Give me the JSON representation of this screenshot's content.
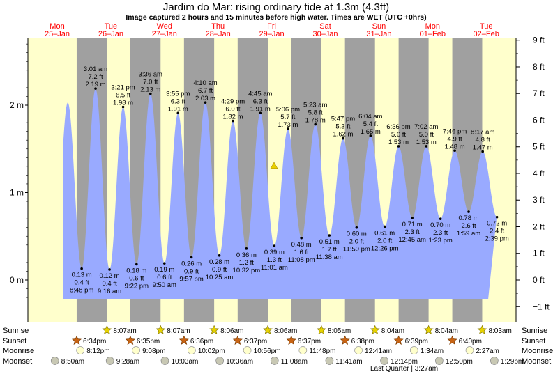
{
  "title": "Jardim do Mar: rising  ordinary tide at 1.3m (4.3ft)",
  "subtitle": "Image captured 2 hours and 15 minutes before high water. Times are WET (UTC +0hrs)",
  "colors": {
    "day_bg": "#ffffcc",
    "night_bg": "#a0a0a0",
    "water": "#99aaff",
    "day_text": "#ff0000",
    "marker": "#e8d000"
  },
  "chart_data": {
    "type": "area",
    "left_axis": {
      "unit": "m",
      "ticks": [
        "0 m",
        "1 m",
        "2 m"
      ]
    },
    "right_axis": {
      "unit": "ft",
      "ticks": [
        "−1 ft",
        "0 ft",
        "1 ft",
        "2 ft",
        "3 ft",
        "4 ft",
        "5 ft",
        "6 ft",
        "7 ft",
        "8 ft",
        "9 ft"
      ]
    },
    "current_level_m": 1.3,
    "days": [
      {
        "dow": "Mon",
        "date": "25–Jan"
      },
      {
        "dow": "Tue",
        "date": "26–Jan"
      },
      {
        "dow": "Wed",
        "date": "27–Jan"
      },
      {
        "dow": "Thu",
        "date": "28–Jan"
      },
      {
        "dow": "Fri",
        "date": "29–Jan"
      },
      {
        "dow": "Sat",
        "date": "30–Jan"
      },
      {
        "dow": "Sun",
        "date": "31–Jan"
      },
      {
        "dow": "Mon",
        "date": "01–Feb"
      },
      {
        "dow": "Tue",
        "date": "02–Feb"
      }
    ],
    "tides": [
      {
        "type": "low",
        "day": 0,
        "time": "8:48 pm",
        "m": "0.13 m",
        "ft": "0.4 ft",
        "v": 0.13
      },
      {
        "type": "high",
        "day": 1,
        "time": "3:01 am",
        "m": "2.19 m",
        "ft": "7.2 ft",
        "v": 2.19
      },
      {
        "type": "low",
        "day": 1,
        "time": "9:16 am",
        "m": "0.12 m",
        "ft": "0.4 ft",
        "v": 0.12
      },
      {
        "type": "high",
        "day": 1,
        "time": "3:21 pm",
        "m": "1.98 m",
        "ft": "6.5 ft",
        "v": 1.98
      },
      {
        "type": "low",
        "day": 1,
        "time": "9:22 pm",
        "m": "0.18 m",
        "ft": "0.6 ft",
        "v": 0.18
      },
      {
        "type": "high",
        "day": 2,
        "time": "3:36 am",
        "m": "2.13 m",
        "ft": "7.0 ft",
        "v": 2.13
      },
      {
        "type": "low",
        "day": 2,
        "time": "9:50 am",
        "m": "0.19 m",
        "ft": "0.6 ft",
        "v": 0.19
      },
      {
        "type": "high",
        "day": 2,
        "time": "3:55 pm",
        "m": "1.91 m",
        "ft": "6.3 ft",
        "v": 1.91
      },
      {
        "type": "low",
        "day": 2,
        "time": "9:57 pm",
        "m": "0.26 m",
        "ft": "0.9 ft",
        "v": 0.26
      },
      {
        "type": "high",
        "day": 3,
        "time": "4:10 am",
        "m": "2.03 m",
        "ft": "6.7 ft",
        "v": 2.03
      },
      {
        "type": "low",
        "day": 3,
        "time": "10:25 am",
        "m": "0.28 m",
        "ft": "0.9 ft",
        "v": 0.28
      },
      {
        "type": "high",
        "day": 3,
        "time": "4:29 pm",
        "m": "1.82 m",
        "ft": "6.0 ft",
        "v": 1.82
      },
      {
        "type": "low",
        "day": 3,
        "time": "10:32 pm",
        "m": "0.36 m",
        "ft": "1.2 ft",
        "v": 0.36
      },
      {
        "type": "high",
        "day": 4,
        "time": "4:45 am",
        "m": "1.91 m",
        "ft": "6.3 ft",
        "v": 1.91
      },
      {
        "type": "low",
        "day": 4,
        "time": "11:01 am",
        "m": "0.39 m",
        "ft": "1.3 ft",
        "v": 0.39
      },
      {
        "type": "high",
        "day": 4,
        "time": "5:06 pm",
        "m": "1.73 m",
        "ft": "5.7 ft",
        "v": 1.73
      },
      {
        "type": "low",
        "day": 4,
        "time": "11:08 pm",
        "m": "0.48 m",
        "ft": "1.6 ft",
        "v": 0.48
      },
      {
        "type": "high",
        "day": 5,
        "time": "5:23 am",
        "m": "1.78 m",
        "ft": "5.8 ft",
        "v": 1.78
      },
      {
        "type": "low",
        "day": 5,
        "time": "11:38 am",
        "m": "0.51 m",
        "ft": "1.7 ft",
        "v": 0.51
      },
      {
        "type": "high",
        "day": 5,
        "time": "5:47 pm",
        "m": "1.62 m",
        "ft": "5.3 ft",
        "v": 1.62
      },
      {
        "type": "low",
        "day": 5,
        "time": "11:50 pm",
        "m": "0.60 m",
        "ft": "2.0 ft",
        "v": 0.6
      },
      {
        "type": "high",
        "day": 6,
        "time": "6:04 am",
        "m": "1.65 m",
        "ft": "5.4 ft",
        "v": 1.65
      },
      {
        "type": "low",
        "day": 6,
        "time": "12:26 pm",
        "m": "0.61 m",
        "ft": "2.0 ft",
        "v": 0.61
      },
      {
        "type": "high",
        "day": 6,
        "time": "6:36 pm",
        "m": "1.53 m",
        "ft": "5.0 ft",
        "v": 1.53
      },
      {
        "type": "low",
        "day": 7,
        "time": "12:45 am",
        "m": "0.71 m",
        "ft": "2.3 ft",
        "v": 0.71
      },
      {
        "type": "high",
        "day": 7,
        "time": "7:02 am",
        "m": "1.53 m",
        "ft": "5.0 ft",
        "v": 1.53
      },
      {
        "type": "low",
        "day": 7,
        "time": "1:23 pm",
        "m": "0.70 m",
        "ft": "2.3 ft",
        "v": 0.7
      },
      {
        "type": "high",
        "day": 7,
        "time": "7:46 pm",
        "m": "1.48 m",
        "ft": "4.9 ft",
        "v": 1.48
      },
      {
        "type": "low",
        "day": 8,
        "time": "1:59 am",
        "m": "0.78 m",
        "ft": "2.6 ft",
        "v": 0.78
      },
      {
        "type": "high",
        "day": 8,
        "time": "8:17 am",
        "m": "1.47 m",
        "ft": "4.8 ft",
        "v": 1.47
      },
      {
        "type": "low",
        "day": 8,
        "time": "2:39 pm",
        "m": "0.72 m",
        "ft": "2.4 ft",
        "v": 0.72
      }
    ],
    "night_periods": [
      {
        "start_day": 0,
        "start": "6:34 pm",
        "end_day": 1,
        "end": "8:07 am"
      },
      {
        "start_day": 1,
        "start": "6:35 pm",
        "end_day": 2,
        "end": "8:07 am"
      },
      {
        "start_day": 2,
        "start": "6:36 pm",
        "end_day": 3,
        "end": "8:06 am"
      },
      {
        "start_day": 3,
        "start": "6:37 pm",
        "end_day": 4,
        "end": "8:06 am"
      },
      {
        "start_day": 4,
        "start": "6:37 pm",
        "end_day": 5,
        "end": "8:05 am"
      },
      {
        "start_day": 5,
        "start": "6:38 pm",
        "end_day": 6,
        "end": "8:04 am"
      },
      {
        "start_day": 6,
        "start": "6:39 pm",
        "end_day": 7,
        "end": "8:04 am"
      },
      {
        "start_day": 7,
        "start": "6:40 pm",
        "end_day": 8,
        "end": "8:03 am"
      }
    ]
  },
  "events": {
    "row_labels": [
      "Sunrise",
      "Sunset",
      "Moonrise",
      "Moonset"
    ],
    "sunrise": [
      {
        "day": 1,
        "time": "8:07am"
      },
      {
        "day": 2,
        "time": "8:07am"
      },
      {
        "day": 3,
        "time": "8:06am"
      },
      {
        "day": 4,
        "time": "8:06am"
      },
      {
        "day": 5,
        "time": "8:05am"
      },
      {
        "day": 6,
        "time": "8:04am"
      },
      {
        "day": 7,
        "time": "8:04am"
      },
      {
        "day": 8,
        "time": "8:03am"
      }
    ],
    "sunset": [
      {
        "day": 0,
        "time": "6:34pm"
      },
      {
        "day": 1,
        "time": "6:35pm"
      },
      {
        "day": 2,
        "time": "6:36pm"
      },
      {
        "day": 3,
        "time": "6:37pm"
      },
      {
        "day": 4,
        "time": "6:37pm"
      },
      {
        "day": 5,
        "time": "6:38pm"
      },
      {
        "day": 6,
        "time": "6:39pm"
      },
      {
        "day": 7,
        "time": "6:40pm"
      }
    ],
    "moonrise": [
      {
        "day": 0,
        "time": "8:12pm"
      },
      {
        "day": 1,
        "time": "9:08pm"
      },
      {
        "day": 2,
        "time": "10:02pm"
      },
      {
        "day": 3,
        "time": "10:56pm"
      },
      {
        "day": 4,
        "time": "11:48pm"
      },
      {
        "day": 6,
        "time": "12:41am"
      },
      {
        "day": 7,
        "time": "1:34am"
      },
      {
        "day": 8,
        "time": "2:27am"
      }
    ],
    "moonset": [
      {
        "day": 0,
        "time": "8:50am"
      },
      {
        "day": 1,
        "time": "9:28am"
      },
      {
        "day": 2,
        "time": "10:03am"
      },
      {
        "day": 3,
        "time": "10:36am"
      },
      {
        "day": 4,
        "time": "11:08am"
      },
      {
        "day": 5,
        "time": "11:41am"
      },
      {
        "day": 6,
        "time": "12:14pm"
      },
      {
        "day": 7,
        "time": "12:50pm"
      },
      {
        "day": 8,
        "time": "1:29pm"
      }
    ],
    "moon_phase": {
      "label": "Last Quarter",
      "time": "3:27am"
    }
  }
}
